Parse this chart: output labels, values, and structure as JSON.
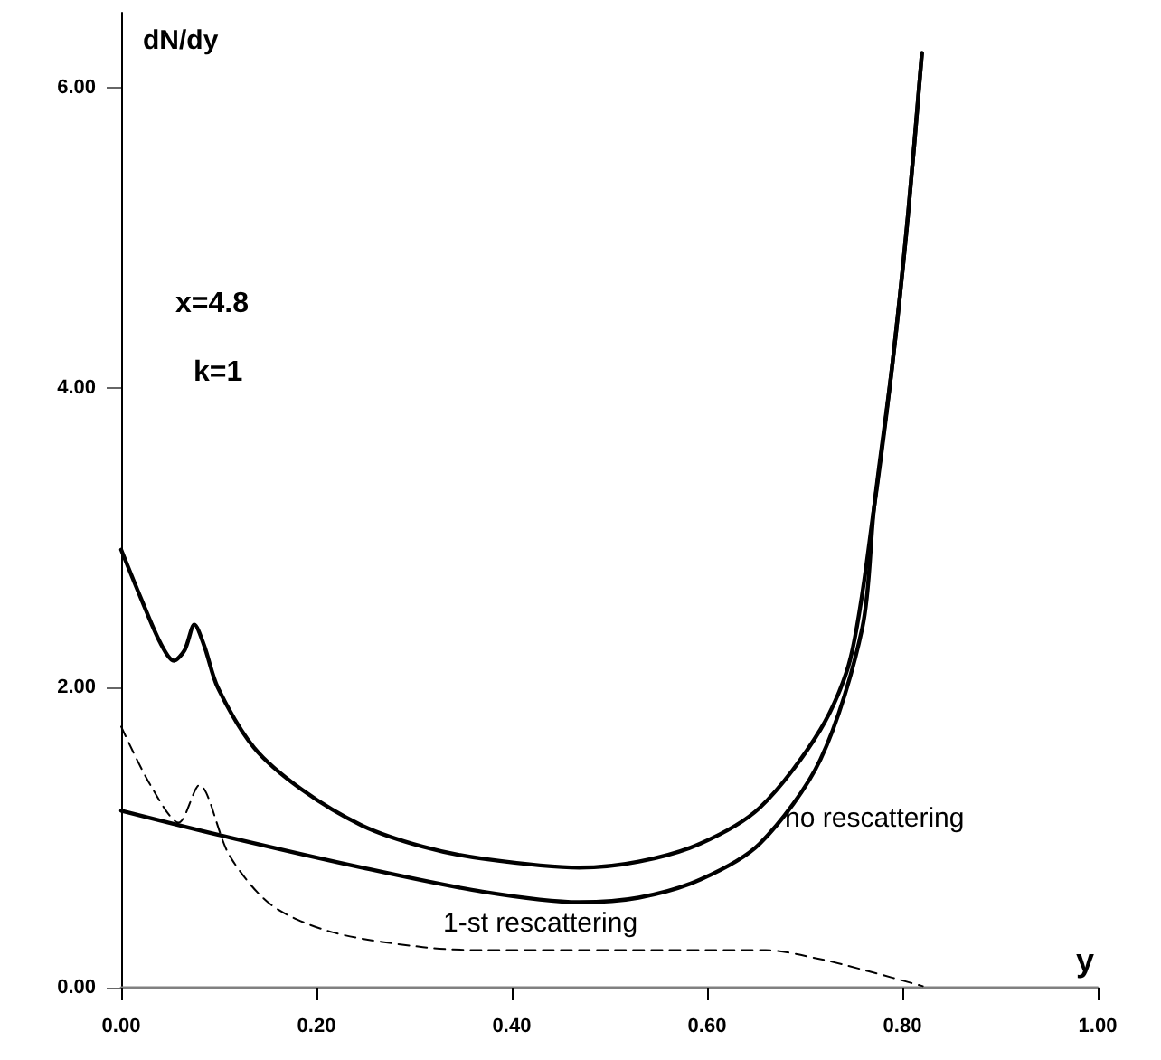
{
  "chart_data": {
    "type": "line",
    "xlabel": "y",
    "ylabel": "dN/dy",
    "xlim": [
      0,
      1
    ],
    "ylim": [
      0,
      6.5
    ],
    "xticks": [
      {
        "value": 0,
        "label": "0.00"
      },
      {
        "value": 0.2,
        "label": "0.20"
      },
      {
        "value": 0.4,
        "label": "0.40"
      },
      {
        "value": 0.6,
        "label": "0.60"
      },
      {
        "value": 0.8,
        "label": "0.80"
      },
      {
        "value": 1,
        "label": "1.00"
      }
    ],
    "yticks": [
      {
        "value": 0,
        "label": "0.00"
      },
      {
        "value": 2,
        "label": "2.00"
      },
      {
        "value": 4,
        "label": "4.00"
      },
      {
        "value": 6,
        "label": "6.00"
      }
    ],
    "grid": false,
    "annotations": [
      "x=4.8",
      "k=1",
      "no rescattering",
      "1-st rescattering"
    ],
    "series": [
      {
        "color": "#000000",
        "line_style": "solid",
        "x": [
          0,
          0.02,
          0.04,
          0.054,
          0.065,
          0.075,
          0.085,
          0.099,
          0.136,
          0.185,
          0.247,
          0.309,
          0.37,
          0.469,
          0.53,
          0.593,
          0.654,
          0.716,
          0.747,
          0.771,
          0.79,
          0.806,
          0.82
        ],
        "values": [
          2.92,
          2.6,
          2.3,
          2.18,
          2.25,
          2.42,
          2.28,
          2.0,
          1.6,
          1.32,
          1.08,
          0.94,
          0.86,
          0.8,
          0.84,
          0.96,
          1.2,
          1.72,
          2.2,
          3.2,
          4.17,
          5.17,
          6.23
        ]
      },
      {
        "color": "#000000",
        "line_style": "solid",
        "x": [
          0,
          0.099,
          0.247,
          0.37,
          0.469,
          0.53,
          0.593,
          0.654,
          0.716,
          0.759,
          0.771,
          0.79,
          0.806,
          0.82
        ],
        "values": [
          1.18,
          1.02,
          0.8,
          0.64,
          0.57,
          0.6,
          0.72,
          0.96,
          1.52,
          2.4,
          3.2,
          4.17,
          5.17,
          6.23
        ]
      },
      {
        "color": "#000000",
        "line_style": "dashed",
        "x": [
          0,
          0.03,
          0.059,
          0.08,
          0.111,
          0.154,
          0.216,
          0.309,
          0.37,
          0.47,
          0.6,
          0.66,
          0.716,
          0.765,
          0.821
        ],
        "values": [
          1.74,
          1.35,
          1.1,
          1.35,
          0.88,
          0.55,
          0.37,
          0.27,
          0.25,
          0.25,
          0.25,
          0.25,
          0.19,
          0.11,
          0.01
        ]
      }
    ]
  }
}
